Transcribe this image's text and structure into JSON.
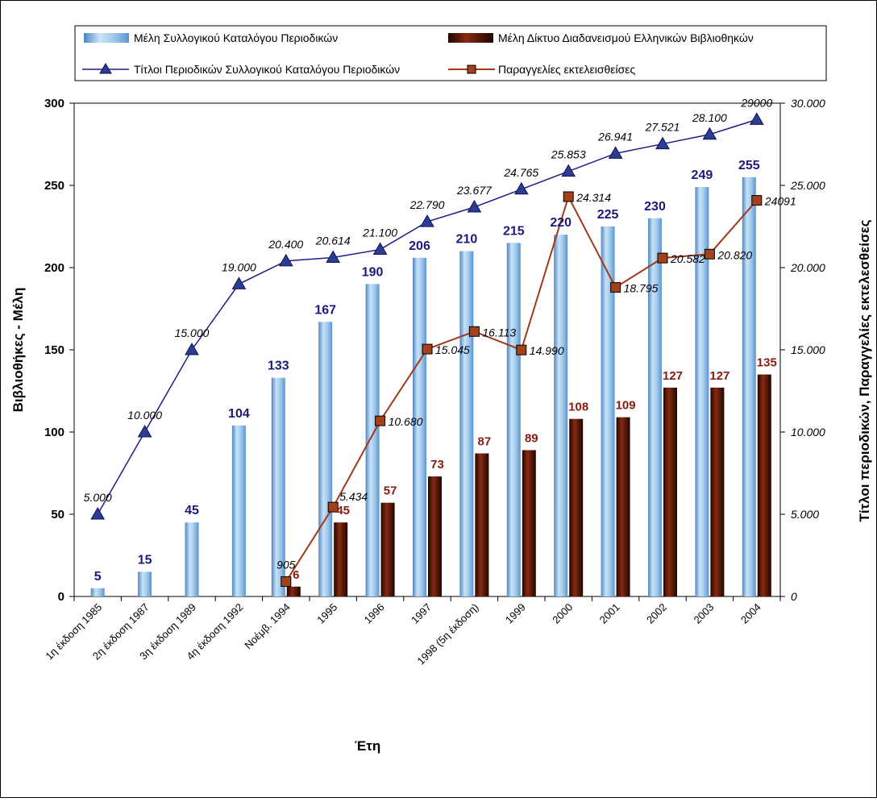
{
  "chart_data": {
    "type": "bar",
    "categories": [
      "1η έκδοση 1985",
      "2η έκδοση 1987",
      "3η έκδοση 1989",
      "4η έκδοση 1992",
      "Νοέμβ. 1994",
      "1995",
      "1996",
      "1997",
      "1998  (5η έκδοση)",
      "1999",
      "2000",
      "2001",
      "2002",
      "2003",
      "2004"
    ],
    "xlabel": "Έτη",
    "ylabel": "Βιβλιοθήκες - Μέλη",
    "y2label": "Τίτλοι περιοδικών, Παραγγελίες εκτελεσθείσες",
    "ylim": [
      0,
      300
    ],
    "yticks": [
      "0",
      "50",
      "100",
      "150",
      "200",
      "250",
      "300"
    ],
    "y2lim": [
      0,
      30000
    ],
    "y2ticks": [
      "0",
      "5.000",
      "10.000",
      "15.000",
      "20.000",
      "25.000",
      "30.000"
    ],
    "legend_position": "top",
    "series": [
      {
        "name": "Μέλη Συλλογικού Καταλόγου Περιοδικών",
        "kind": "bar",
        "axis": "left",
        "color": "#8fbfe6",
        "values": [
          5,
          15,
          45,
          104,
          133,
          167,
          190,
          206,
          210,
          215,
          220,
          225,
          230,
          249,
          255
        ],
        "labels": [
          "5",
          "15",
          "45",
          "104",
          "133",
          "167",
          "190",
          "206",
          "210",
          "215",
          "220",
          "225",
          "230",
          "249",
          "255"
        ]
      },
      {
        "name": "Μέλη Δίκτυο Διαδανεισμού Ελληνικών Βιβλιοθηκών",
        "kind": "bar",
        "axis": "left",
        "color": "#6e1f0c",
        "values": [
          null,
          null,
          null,
          null,
          6,
          45,
          57,
          73,
          87,
          89,
          108,
          109,
          127,
          127,
          135
        ],
        "labels": [
          null,
          null,
          null,
          null,
          "6",
          "45",
          "57",
          "73",
          "87",
          "89",
          "108",
          "109",
          "127",
          "127",
          "135"
        ]
      },
      {
        "name": "Τίτλοι Περιοδικών Συλλογικού Καταλόγου Περιοδικών",
        "kind": "line",
        "axis": "right",
        "color": "#1c1c8c",
        "values": [
          5000,
          10000,
          15000,
          19000,
          20400,
          20614,
          21100,
          22790,
          23677,
          24765,
          25853,
          26941,
          27521,
          28100,
          29000
        ],
        "labels": [
          "5.000",
          "10.000",
          "15.000",
          "19.000",
          "20.400",
          "20.614",
          "21.100",
          "22.790",
          "23.677",
          "24.765",
          "25.853",
          "26.941",
          "27.521",
          "28.100",
          "29000"
        ]
      },
      {
        "name": "Παραγγελίες εκτελεισθείσες",
        "kind": "line",
        "axis": "right",
        "color": "#a0391a",
        "values": [
          null,
          null,
          null,
          null,
          905,
          5434,
          10680,
          15045,
          16113,
          14990,
          24314,
          18795,
          20582,
          20820,
          24091
        ],
        "labels": [
          null,
          null,
          null,
          null,
          "905",
          "5.434",
          "10.680",
          "15.045",
          "16.113",
          "14.990",
          "24.314",
          "18.795",
          "20.582",
          "20.820",
          "24091"
        ]
      }
    ]
  }
}
